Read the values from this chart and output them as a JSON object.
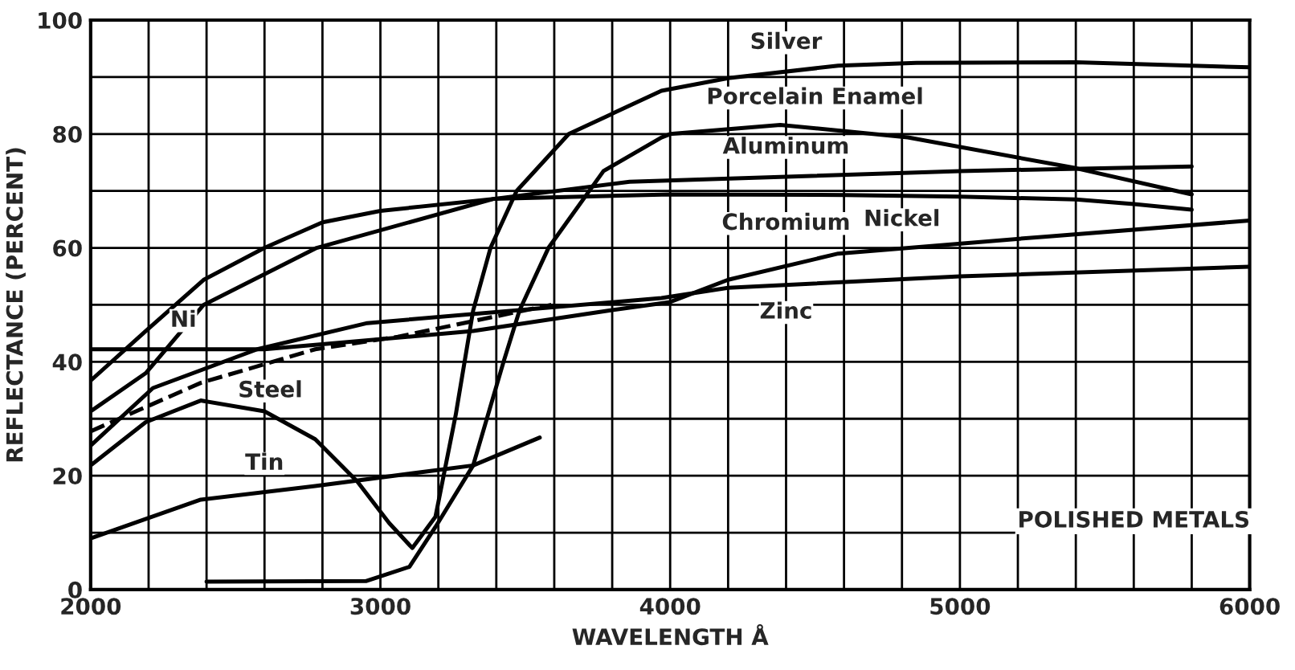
{
  "chart_data": {
    "type": "line",
    "xlabel": "WAVELENGTH Å",
    "ylabel": "REFLECTANCE (PERCENT)",
    "xlim": [
      2000,
      6000
    ],
    "ylim": [
      0,
      100
    ],
    "xticks": [
      2000,
      {
        "value": 2200,
        "label": null
      },
      {
        "value": 2400,
        "label": null
      },
      {
        "value": 2600,
        "label": null
      },
      {
        "value": 2800,
        "label": null
      },
      3000,
      {
        "value": 3200,
        "label": null
      },
      {
        "value": 3400,
        "label": null
      },
      {
        "value": 3600,
        "label": null
      },
      {
        "value": 3800,
        "label": null
      },
      4000,
      {
        "value": 4200,
        "label": null
      },
      {
        "value": 4400,
        "label": null
      },
      {
        "value": 4600,
        "label": null
      },
      {
        "value": 4800,
        "label": null
      },
      5000,
      {
        "value": 5200,
        "label": null
      },
      {
        "value": 5400,
        "label": null
      },
      {
        "value": 5600,
        "label": null
      },
      {
        "value": 5800,
        "label": null
      },
      6000
    ],
    "yticks": [
      0,
      {
        "value": 10,
        "label": null
      },
      20,
      {
        "value": 30,
        "label": null
      },
      40,
      {
        "value": 50,
        "label": null
      },
      60,
      {
        "value": 70,
        "label": null
      },
      80,
      {
        "value": 90,
        "label": null
      },
      100
    ],
    "grid": true,
    "legend": false,
    "marker": "none",
    "line_style": "solid",
    "series": [
      {
        "color": "#000000",
        "x": [
          2000,
          2190,
          2380,
          2600,
          2775,
          2920,
          3030,
          3110,
          3190,
          3260,
          3320,
          3380,
          3470,
          3650,
          3970,
          4200,
          4580,
          4850,
          5400,
          6000
        ],
        "values": [
          21.8,
          29.4,
          33.2,
          31.3,
          26.4,
          19,
          11.7,
          7.3,
          12.8,
          30.7,
          49,
          60,
          70,
          80,
          87.6,
          89.8,
          92,
          92.5,
          92.6,
          91.7
        ]
      },
      {
        "color": "#000000",
        "x": [
          2400,
          2950,
          3100,
          3190,
          3320,
          3425,
          3480,
          3580,
          3770,
          3970,
          4000,
          4380,
          4820,
          5400,
          5800
        ],
        "values": [
          1.4,
          1.5,
          4,
          11,
          21.8,
          40,
          49,
          60,
          73.5,
          79.4,
          80,
          81.6,
          79.4,
          74,
          69.4
        ]
      },
      {
        "color": "#000000",
        "x": [
          2000,
          2190,
          2390,
          2780,
          3390,
          3860,
          5000,
          5800
        ],
        "values": [
          31.3,
          38,
          50,
          60,
          68.6,
          71.6,
          73.5,
          74.3
        ]
      },
      {
        "color": "#000000",
        "x": [
          2000,
          2190,
          2390,
          2600,
          2800,
          3000,
          3390,
          4000,
          4600,
          5000,
          5400,
          5600,
          5800
        ],
        "values": [
          36.7,
          45.4,
          54.4,
          60,
          64.5,
          66.5,
          68.6,
          69.4,
          69.3,
          69,
          68.5,
          67.7,
          66.7
        ]
      },
      {
        "color": "#000000",
        "x": [
          2000,
          2600,
          3320,
          3790,
          4000,
          4200,
          4580,
          5300,
          6000
        ],
        "values": [
          42.2,
          42.2,
          45.4,
          49,
          50.5,
          54.4,
          59,
          62,
          64.8
        ]
      },
      {
        "color": "#000000",
        "x": [
          2000,
          2215,
          2575,
          2955,
          3970,
          4200,
          5000,
          6000
        ],
        "values": [
          25.3,
          35.4,
          42.2,
          46.8,
          51.2,
          53,
          55,
          56.7
        ]
      },
      {
        "color": "#000000",
        "line_style": "dashed",
        "x": [
          2000,
          2380,
          2775,
          3060,
          3590
        ],
        "values": [
          27.8,
          36.3,
          42.2,
          44.4,
          50
        ]
      },
      {
        "color": "#000000",
        "x": [
          2000,
          2380,
          2775,
          3320,
          3550
        ],
        "values": [
          9,
          15.8,
          18.2,
          21.8,
          26.7
        ]
      }
    ],
    "annotations": [
      {
        "text": "Silver",
        "x": 4400,
        "y": 91
      },
      {
        "text": "Porcelain Enamel",
        "x": 4500,
        "y": 81.3
      },
      {
        "text": "Aluminum",
        "x": 4400,
        "y": 72.6
      },
      {
        "text": "Chromium",
        "x": 4400,
        "y": 69.3
      },
      {
        "text": "Nickel",
        "x": 4800,
        "y": 59.9
      },
      {
        "text": "Zinc",
        "x": 4400,
        "y": 53.7
      },
      {
        "text": "Ni",
        "x": 2320,
        "y": 42.2
      },
      {
        "text": "Steel",
        "x": 2620,
        "y": 39.9
      },
      {
        "text": "Tin",
        "x": 2600,
        "y": 17.1
      },
      "POLISHED METALS"
    ]
  }
}
